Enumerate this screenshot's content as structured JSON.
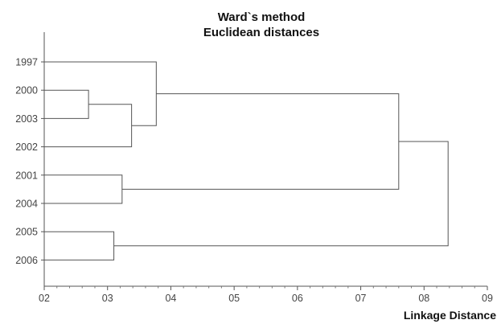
{
  "chart_data": {
    "type": "dendrogram",
    "title": "Ward`s method",
    "subtitle": "Euclidean distances",
    "xlabel": "Linkage Distance",
    "ylabel": "",
    "orientation": "horizontal",
    "xlim": [
      2,
      9
    ],
    "x_ticks": [
      2,
      3,
      4,
      5,
      6,
      7,
      8,
      9
    ],
    "x_tick_labels": [
      "02",
      "03",
      "04",
      "05",
      "06",
      "07",
      "08",
      "09"
    ],
    "leaves": [
      "1997",
      "2000",
      "2003",
      "2002",
      "2001",
      "2004",
      "2005",
      "2006"
    ],
    "merges": [
      {
        "id": "A",
        "children": [
          "2000",
          "2003"
        ],
        "distance": 2.7
      },
      {
        "id": "B",
        "children": [
          "A",
          "2002"
        ],
        "distance": 3.38
      },
      {
        "id": "C",
        "children": [
          "1997",
          "B"
        ],
        "distance": 3.77
      },
      {
        "id": "D",
        "children": [
          "2001",
          "2004"
        ],
        "distance": 3.23
      },
      {
        "id": "E",
        "children": [
          "2005",
          "2006"
        ],
        "distance": 3.1
      },
      {
        "id": "F",
        "children": [
          "C",
          "D"
        ],
        "distance": 7.6
      },
      {
        "id": "G",
        "children": [
          "F",
          "E"
        ],
        "distance": 8.38
      }
    ],
    "grid": false,
    "colors": {
      "line": "#555555",
      "text": "#444444",
      "title": "#111111"
    }
  }
}
